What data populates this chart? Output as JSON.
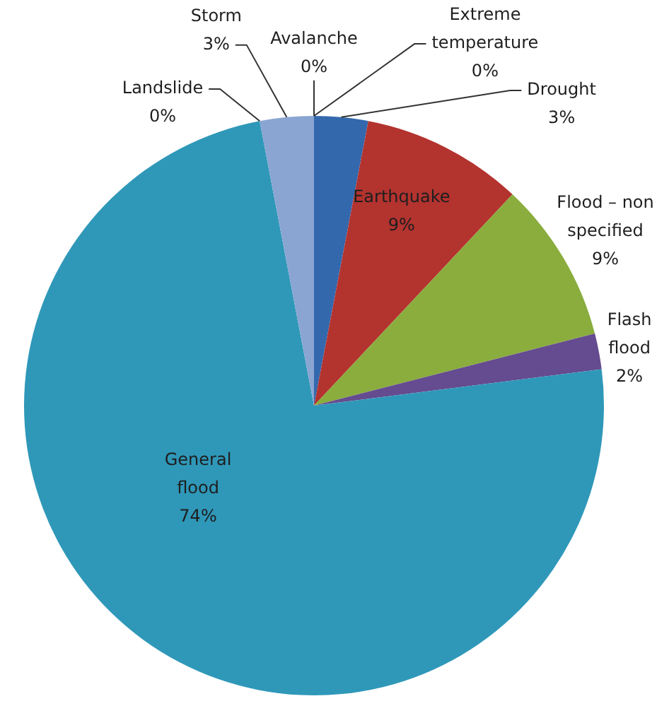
{
  "chart_data": {
    "type": "pie",
    "categories": [
      "Drought",
      "Earthquake",
      "Flood – non specified",
      "Flash flood",
      "General flood",
      "Landslide",
      "Storm",
      "Avalanche",
      "Extreme temperature"
    ],
    "values": [
      3,
      9,
      9,
      2,
      74,
      0,
      3,
      0,
      0
    ],
    "value_labels": [
      "3%",
      "9%",
      "9%",
      "2%",
      "74%",
      "0%",
      "3%",
      "0%",
      "0%"
    ],
    "colors": [
      "#3468ad",
      "#b3332f",
      "#8aad3e",
      "#654b8f",
      "#2f98b9",
      "#e08a3c",
      "#8aa5d2",
      "#c48c8a",
      "#b0c982"
    ]
  }
}
